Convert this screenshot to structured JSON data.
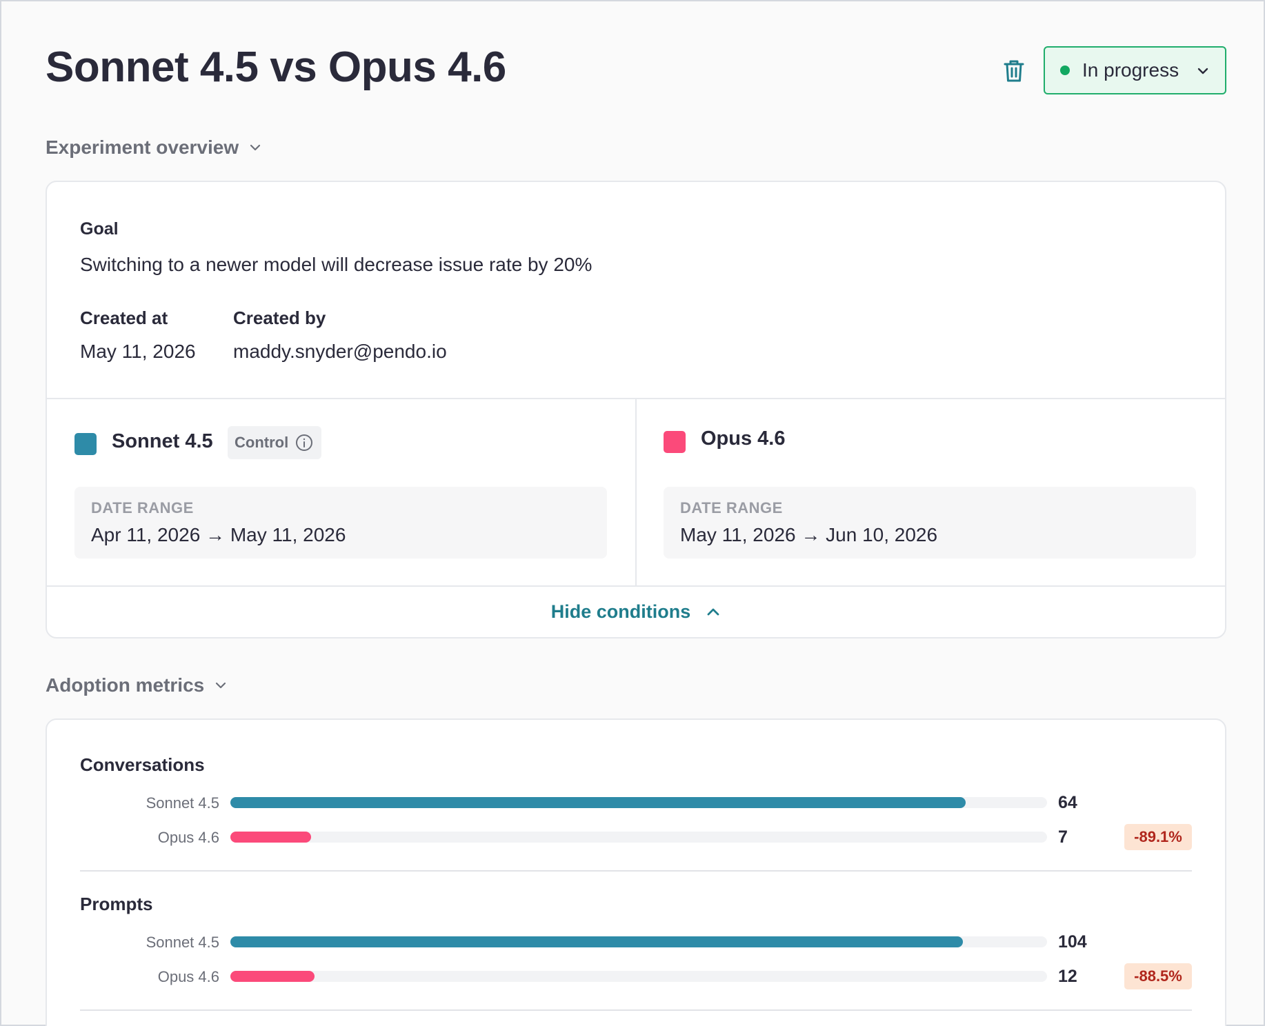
{
  "header": {
    "title": "Sonnet 4.5 vs Opus 4.6",
    "status": "In progress"
  },
  "overview": {
    "section_label": "Experiment overview",
    "goal_label": "Goal",
    "goal_text": "Switching to a newer model will decrease issue rate by 20%",
    "created_at_label": "Created at",
    "created_at": "May 11, 2026",
    "created_by_label": "Created by",
    "created_by": "maddy.snyder@pendo.io",
    "conditions": [
      {
        "name": "Sonnet 4.5",
        "color": "#2e8ba8",
        "badge": "Control",
        "range_label": "DATE RANGE",
        "range": "Apr 11, 2026 → May 11, 2026"
      },
      {
        "name": "Opus 4.6",
        "color": "#fb4a7a",
        "range_label": "DATE RANGE",
        "range": "May 11, 2026 → Jun 10, 2026"
      }
    ],
    "hide_conditions": "Hide conditions"
  },
  "metrics": {
    "section_label": "Adoption metrics",
    "items": [
      {
        "title": "Conversations",
        "rows": [
          {
            "label": "Sonnet 4.5",
            "value": "64",
            "fraction": 0.9
          },
          {
            "label": "Opus 4.6",
            "value": "7",
            "fraction": 0.099,
            "delta": "-89.1%"
          }
        ]
      },
      {
        "title": "Prompts",
        "rows": [
          {
            "label": "Sonnet 4.5",
            "value": "104",
            "fraction": 0.897
          },
          {
            "label": "Opus 4.6",
            "value": "12",
            "fraction": 0.103,
            "delta": "-88.5%"
          }
        ]
      }
    ]
  },
  "colors": {
    "control": "#2e8ba8",
    "variant": "#fb4a7a",
    "status_green": "#12a861",
    "accent": "#1f7d8c"
  }
}
